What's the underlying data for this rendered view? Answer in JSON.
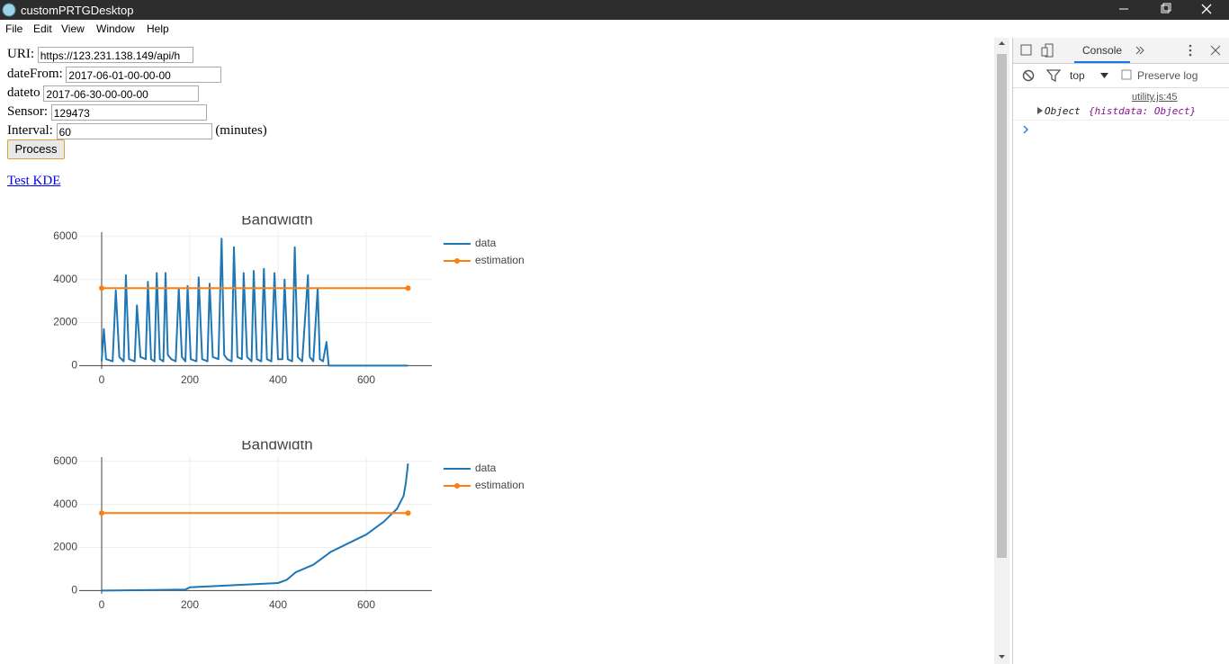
{
  "window": {
    "title": "customPRTGDesktop"
  },
  "menu": [
    "File",
    "Edit",
    "View",
    "Window",
    "Help"
  ],
  "form": {
    "fields": [
      {
        "label": "URI:",
        "value": "https://123.231.138.149/api/h"
      },
      {
        "label": "dateFrom:",
        "value": "2017-06-01-00-00-00"
      },
      {
        "label": "dateto",
        "value": "2017-06-30-00-00-00"
      },
      {
        "label": "Sensor:",
        "value": "129473"
      },
      {
        "label": "Interval:",
        "value": "60",
        "suffix": "(minutes)"
      }
    ],
    "button": "Process",
    "link": "Test KDE"
  },
  "chart_data": [
    {
      "type": "line",
      "title": "Bandwidth",
      "xlim": [
        -51,
        749
      ],
      "ylim": [
        -150,
        6200
      ],
      "xticks": [
        0,
        200,
        400,
        600
      ],
      "yticks": [
        0,
        2000,
        4000,
        6000
      ],
      "grid": true,
      "legend": "right",
      "series": [
        {
          "name": "data",
          "color": "#1f77b4",
          "markers": false,
          "x": [
            0,
            5,
            10,
            25,
            32,
            40,
            50,
            55,
            62,
            75,
            80,
            88,
            100,
            105,
            112,
            120,
            125,
            132,
            140,
            145,
            150,
            158,
            168,
            175,
            182,
            190,
            195,
            202,
            215,
            220,
            228,
            240,
            245,
            252,
            265,
            272,
            278,
            285,
            295,
            300,
            308,
            318,
            322,
            330,
            340,
            345,
            352,
            362,
            368,
            375,
            385,
            392,
            400,
            410,
            415,
            422,
            432,
            438,
            445,
            455,
            468,
            472,
            480,
            490,
            495,
            502,
            510,
            515,
            600,
            695
          ],
          "values": [
            200,
            1700,
            300,
            200,
            3500,
            400,
            200,
            4200,
            300,
            200,
            2800,
            400,
            300,
            3900,
            300,
            200,
            4300,
            300,
            200,
            4300,
            500,
            300,
            200,
            3600,
            400,
            200,
            3700,
            300,
            200,
            4100,
            300,
            200,
            3800,
            400,
            300,
            5900,
            500,
            300,
            200,
            5500,
            400,
            300,
            4300,
            400,
            200,
            4400,
            300,
            200,
            4500,
            300,
            200,
            4300,
            300,
            300,
            4000,
            300,
            200,
            5500,
            400,
            200,
            4200,
            400,
            200,
            3600,
            300,
            200,
            1100,
            0,
            0,
            0
          ]
        },
        {
          "name": "estimation",
          "color": "#ff7f0e",
          "markers": true,
          "x": [
            0,
            695
          ],
          "values": [
            3600,
            3600
          ]
        }
      ]
    },
    {
      "type": "line",
      "title": "Bandwidth",
      "xlim": [
        -51,
        749
      ],
      "ylim": [
        -150,
        6200
      ],
      "xticks": [
        0,
        200,
        400,
        600
      ],
      "yticks": [
        0,
        2000,
        4000,
        6000
      ],
      "grid": true,
      "legend": "right",
      "series": [
        {
          "name": "data",
          "color": "#1f77b4",
          "markers": false,
          "x": [
            0,
            100,
            190,
            200,
            300,
            400,
            420,
            440,
            480,
            520,
            560,
            600,
            640,
            670,
            685,
            690,
            695
          ],
          "values": [
            0,
            20,
            50,
            150,
            250,
            350,
            500,
            850,
            1200,
            1800,
            2200,
            2600,
            3200,
            3800,
            4400,
            5000,
            5900
          ]
        },
        {
          "name": "estimation",
          "color": "#ff7f0e",
          "markers": true,
          "x": [
            0,
            695
          ],
          "values": [
            3600,
            3600
          ]
        }
      ]
    }
  ],
  "devtools": {
    "tab": "Console",
    "context": "top",
    "preserve_log": "Preserve log",
    "source": "utility.js:45",
    "log": "Object",
    "log_detail": "{histdata: Object}"
  }
}
